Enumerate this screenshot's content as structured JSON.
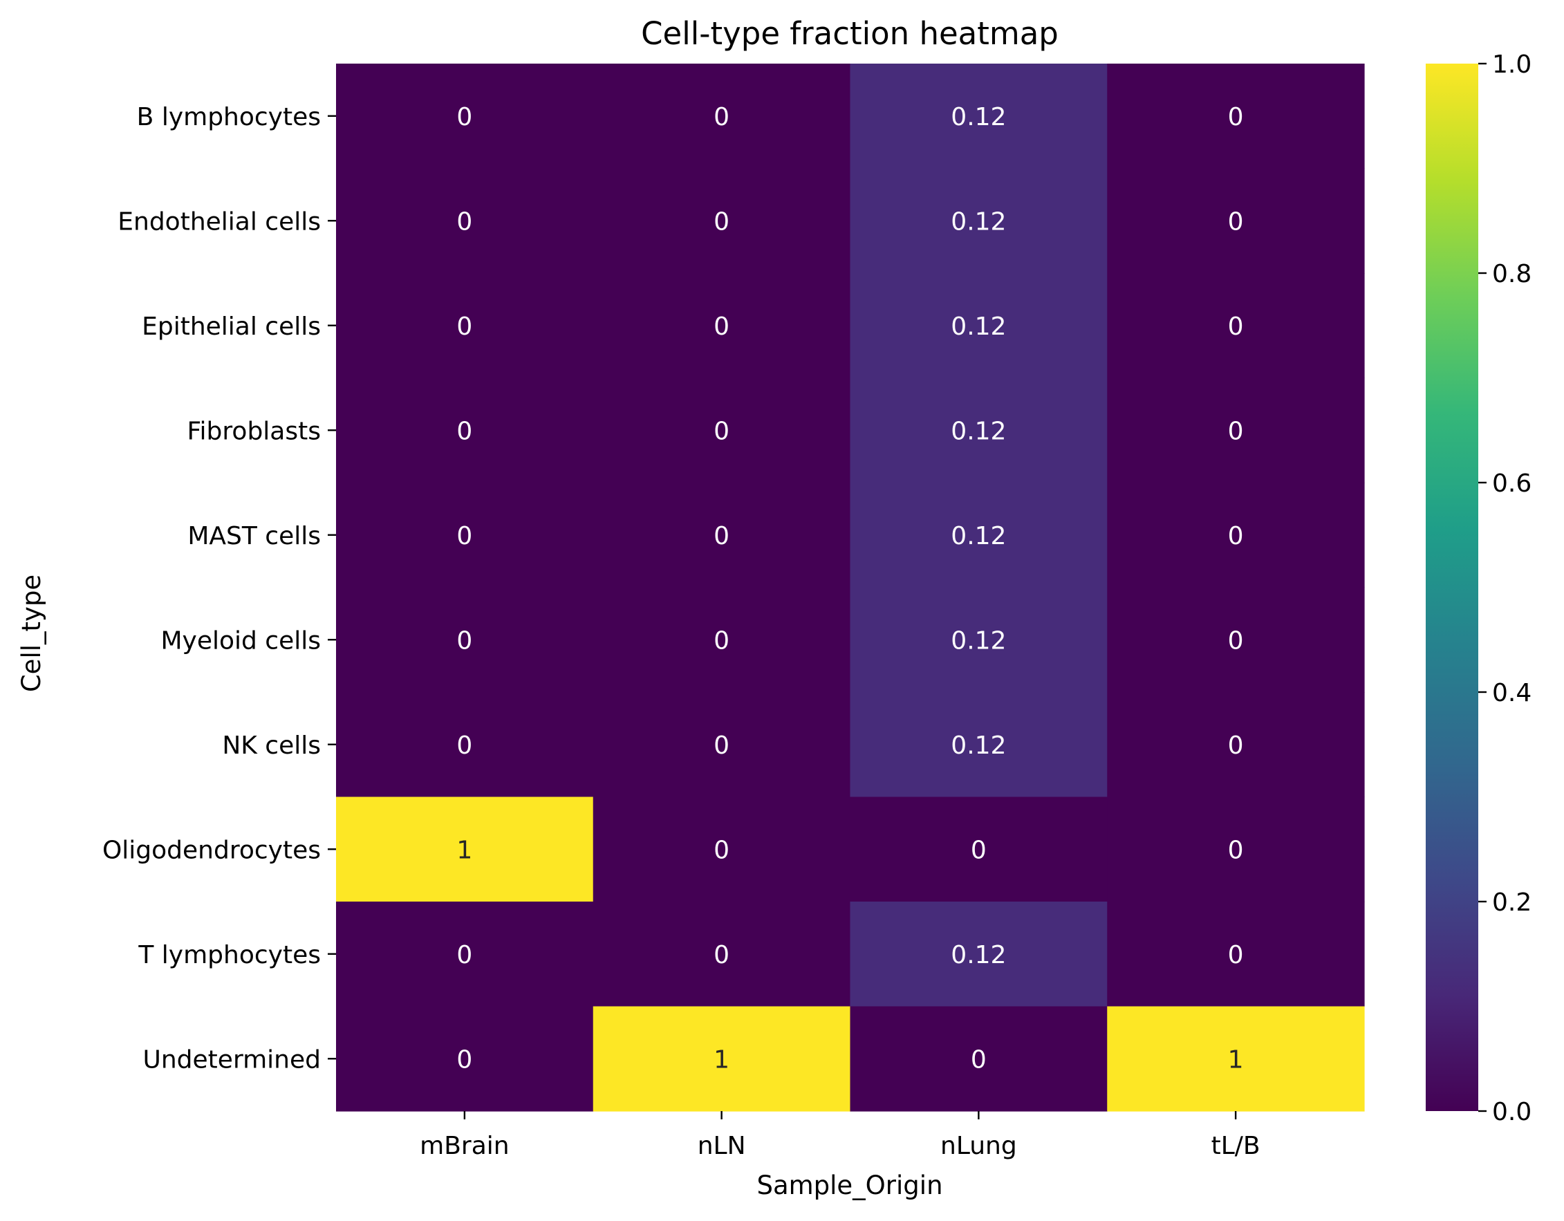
{
  "chart_data": {
    "type": "heatmap",
    "title": "Cell-type fraction heatmap",
    "xlabel": "Sample_Origin",
    "ylabel": "Cell_type",
    "x_categories": [
      "mBrain",
      "nLN",
      "nLung",
      "tL/B"
    ],
    "y_categories": [
      "B lymphocytes",
      "Endothelial cells",
      "Epithelial cells",
      "Fibroblasts",
      "MAST cells",
      "Myeloid cells",
      "NK cells",
      "Oligodendrocytes",
      "T lymphocytes",
      "Undetermined"
    ],
    "values": [
      [
        0,
        0,
        0.125,
        0
      ],
      [
        0,
        0,
        0.125,
        0
      ],
      [
        0,
        0,
        0.125,
        0
      ],
      [
        0,
        0,
        0.125,
        0
      ],
      [
        0,
        0,
        0.125,
        0
      ],
      [
        0,
        0,
        0.125,
        0
      ],
      [
        0,
        0,
        0.125,
        0
      ],
      [
        1,
        0,
        0,
        0
      ],
      [
        0,
        0,
        0.125,
        0
      ],
      [
        0,
        1,
        0,
        1
      ]
    ],
    "annotations": [
      [
        "0",
        "0",
        "0.12",
        "0"
      ],
      [
        "0",
        "0",
        "0.12",
        "0"
      ],
      [
        "0",
        "0",
        "0.12",
        "0"
      ],
      [
        "0",
        "0",
        "0.12",
        "0"
      ],
      [
        "0",
        "0",
        "0.12",
        "0"
      ],
      [
        "0",
        "0",
        "0.12",
        "0"
      ],
      [
        "0",
        "0",
        "0.12",
        "0"
      ],
      [
        "1",
        "0",
        "0",
        "0"
      ],
      [
        "0",
        "0",
        "0.12",
        "0"
      ],
      [
        "0",
        "1",
        "0",
        "1"
      ]
    ],
    "colormap": "viridis",
    "colormap_stops": [
      "#440154",
      "#482878",
      "#3e4989",
      "#31688e",
      "#26828e",
      "#1f9e89",
      "#35b779",
      "#6ece58",
      "#b5de2b",
      "#fde725"
    ],
    "vmin": 0,
    "vmax": 1,
    "colorbar_ticks": [
      0.0,
      0.2,
      0.4,
      0.6,
      0.8,
      1.0
    ],
    "colorbar_tick_labels": [
      "0.0",
      "0.2",
      "0.4",
      "0.6",
      "0.8",
      "1.0"
    ],
    "grid": false,
    "annotation_light_color": "#ffffff",
    "annotation_dark_color": "#262626"
  }
}
